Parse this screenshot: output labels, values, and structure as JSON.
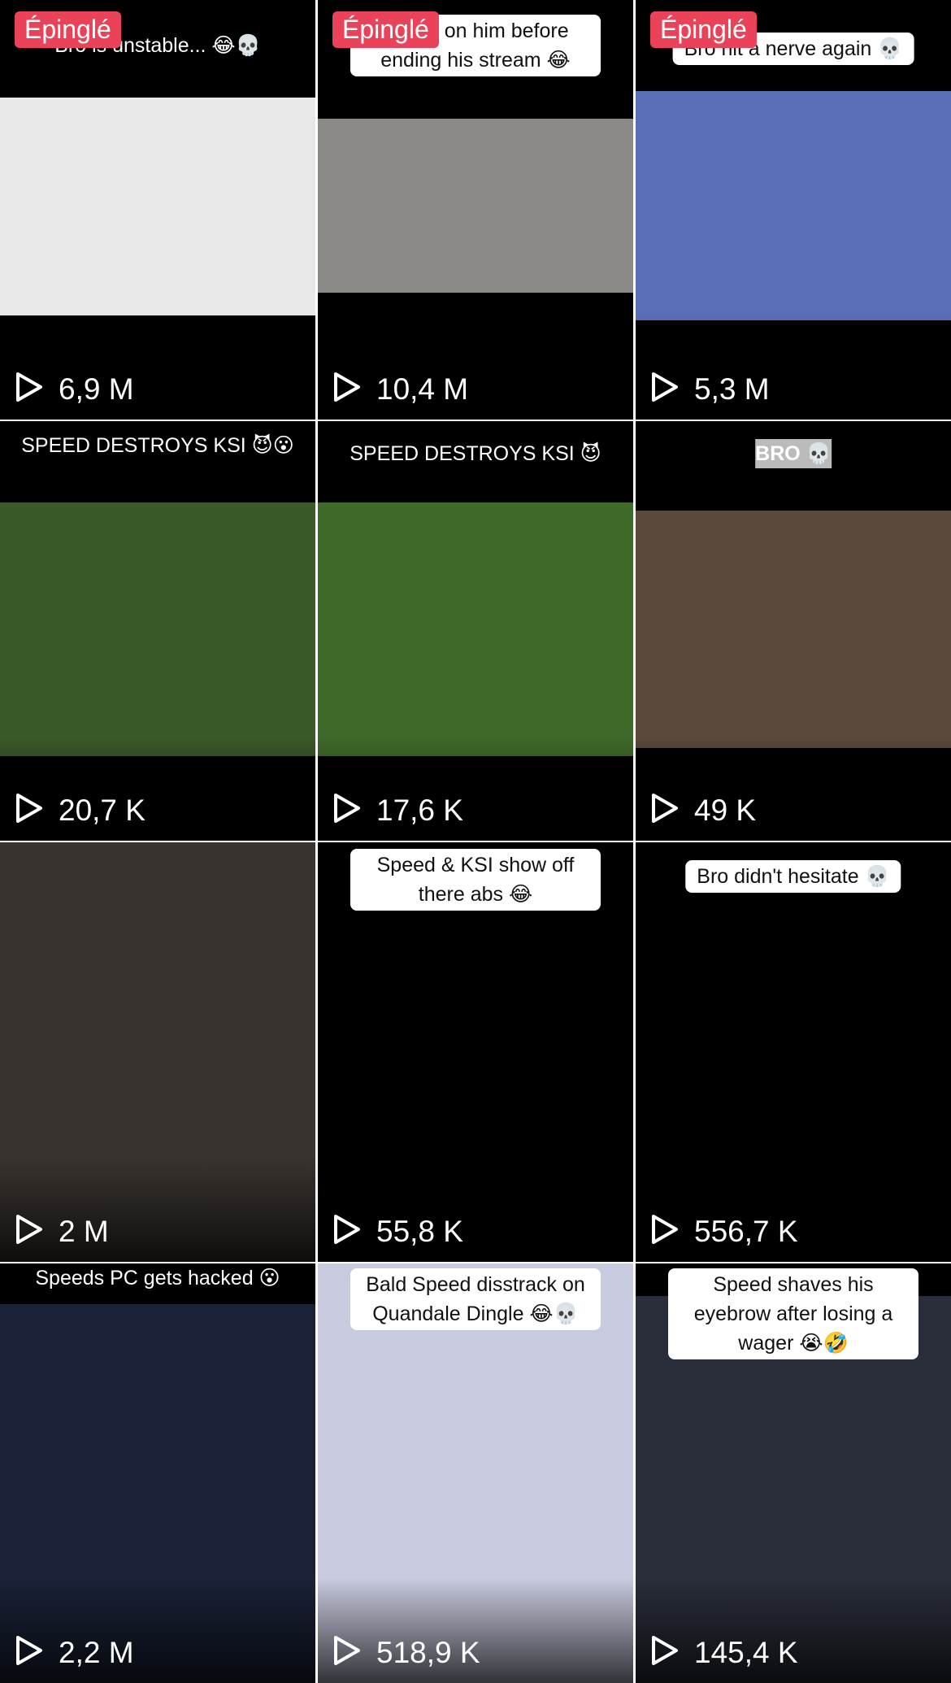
{
  "pinned_label": "Épinglé",
  "tiles": [
    {
      "caption": "Bro is unstable... 😂💀",
      "views": "6,9 M"
    },
    {
      "caption": "C falls on him before ending his stream 😂",
      "views": "10,4 M"
    },
    {
      "caption": "Bro hit a nerve again 💀",
      "views": "5,3 M"
    },
    {
      "caption": "SPEED DESTROYS KSI 😈😮",
      "views": "20,7 K"
    },
    {
      "caption": "SPEED DESTROYS KSI 😈",
      "views": "17,6 K"
    },
    {
      "caption": "BRO 💀",
      "views": "49 K"
    },
    {
      "views": "2 M"
    },
    {
      "caption": "Speed & KSI show off there abs 😂",
      "views": "55,8 K"
    },
    {
      "caption": "Bro didn't hesitate 💀",
      "views": "556,7 K"
    },
    {
      "caption": "Speeds PC gets hacked 😮",
      "views": "2,2 M"
    },
    {
      "caption": "Bald Speed disstrack on Quandale Dingle 😂💀",
      "views": "518,9 K"
    },
    {
      "caption": "Speed shaves his eyebrow after losing a wager 😭🤣",
      "views": "145,4 K"
    }
  ]
}
